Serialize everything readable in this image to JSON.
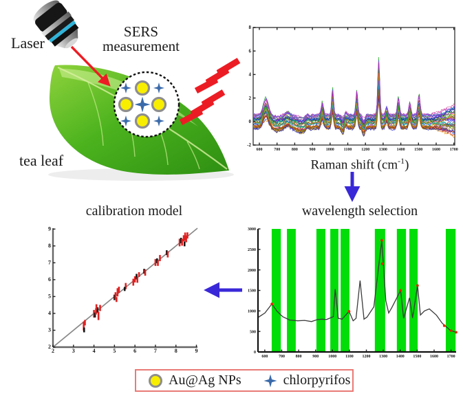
{
  "figure": {
    "kind": "SERS measurement workflow schematic",
    "labels": {
      "laser": "Laser",
      "sers_line1": "SERS",
      "sers_line2": "measurement",
      "tea_leaf": "tea leaf",
      "raman_xlabel_main": "Raman shift (cm",
      "raman_xlabel_sup": "-1",
      "raman_xlabel_end": ")"
    },
    "colors": {
      "arrow_red": "#ec1c24",
      "arrow_blue": "#3928d8",
      "plus_blue": "#3a6aaa",
      "np_yellow": "#f8ee00",
      "np_ring": "#8e8e8e",
      "leaf_green_dark": "#2e8f12",
      "leaf_green_light": "#9ade4a",
      "selection_green": "#00dd08",
      "legend_border": "#e97a76"
    },
    "icons": [
      "laser-objective-icon",
      "tea-leaf-icon",
      "sample-droplet-circle-icon",
      "au-ag-np-icon",
      "chlorpyrifos-plus-icon",
      "lightning-bolt-icon",
      "red-arrow-icon",
      "blue-down-arrow-icon",
      "blue-left-arrow-icon"
    ]
  },
  "legend": {
    "items": [
      {
        "icon": "au-ag-np-icon",
        "label": "Au@Ag NPs"
      },
      {
        "icon": "chlorpyrifos-plus-icon",
        "label": "chlorpyrifos"
      }
    ]
  },
  "chart_data": [
    {
      "id": "raman",
      "type": "line",
      "title": "",
      "xlabel": "Raman shift (cm⁻¹)",
      "ylabel": "",
      "xlim": [
        565,
        1705
      ],
      "ylim": [
        -2,
        8
      ],
      "x_ticks": [
        600,
        700,
        800,
        900,
        1000,
        1100,
        1200,
        1300,
        1400,
        1500,
        1600,
        1700
      ],
      "y_ticks": [
        -2,
        0,
        2,
        4,
        6,
        8
      ],
      "grid": false,
      "legend_position": "none",
      "n_series": 38,
      "series_colors": [
        "#2222cc",
        "#cc2222",
        "#22aa22",
        "#00b8b8",
        "#bb22bb",
        "#ee8800",
        "#5555ee",
        "#886600",
        "#009977",
        "#cc5599",
        "#7a7a00",
        "#3300aa",
        "#e03030",
        "#3060e0",
        "#30b030"
      ],
      "peaks": [
        {
          "x": 637,
          "h": 1.5,
          "w": 22
        },
        {
          "x": 760,
          "h": 0.35,
          "w": 16
        },
        {
          "x": 870,
          "h": 0.3,
          "w": 12
        },
        {
          "x": 956,
          "h": 1.15,
          "w": 10
        },
        {
          "x": 1014,
          "h": 2.3,
          "w": 8
        },
        {
          "x": 1085,
          "h": 0.6,
          "w": 10
        },
        {
          "x": 1151,
          "h": 2.2,
          "w": 8
        },
        {
          "x": 1275,
          "h": 4.9,
          "w": 8
        },
        {
          "x": 1320,
          "h": 0.8,
          "w": 9
        },
        {
          "x": 1386,
          "h": 1.6,
          "w": 9
        },
        {
          "x": 1451,
          "h": 1.2,
          "w": 9
        },
        {
          "x": 1503,
          "h": 1.9,
          "w": 9
        },
        {
          "x": 700,
          "h": -0.3,
          "w": 30
        },
        {
          "x": 840,
          "h": -0.45,
          "w": 40
        },
        {
          "x": 1075,
          "h": -0.65,
          "w": 13
        },
        {
          "x": 1190,
          "h": -0.75,
          "w": 10
        }
      ],
      "tail_start": 1560,
      "noise": 0.12
    },
    {
      "id": "wavelength",
      "type": "line-with-selection-bands",
      "title": "wavelength selection",
      "xlim": [
        560,
        1730
      ],
      "ylim": [
        0,
        3000
      ],
      "x_ticks": [
        600,
        700,
        800,
        900,
        1000,
        1100,
        1200,
        1300,
        1400,
        1500,
        1600,
        1700
      ],
      "y_ticks": [
        0,
        500,
        1000,
        1500,
        2000,
        2500,
        3000
      ],
      "grid": false,
      "band_color": "#00dd08",
      "line_color": "#3a3a3a",
      "highlight_color": "#e02800",
      "selected_bands": [
        [
          641,
          695
        ],
        [
          731,
          783
        ],
        [
          905,
          958
        ],
        [
          987,
          1035
        ],
        [
          1048,
          1100
        ],
        [
          1250,
          1311
        ],
        [
          1380,
          1434
        ],
        [
          1454,
          1503
        ],
        [
          1669,
          1727
        ]
      ],
      "spectrum": [
        [
          560,
          840
        ],
        [
          601,
          950
        ],
        [
          642,
          1170
        ],
        [
          671,
          1000
        ],
        [
          706,
          860
        ],
        [
          747,
          780
        ],
        [
          794,
          760
        ],
        [
          835,
          770
        ],
        [
          876,
          740
        ],
        [
          911,
          790
        ],
        [
          940,
          800
        ],
        [
          964,
          790
        ],
        [
          987,
          830
        ],
        [
          1005,
          860
        ],
        [
          1016,
          1530
        ],
        [
          1034,
          820
        ],
        [
          1057,
          800
        ],
        [
          1098,
          990
        ],
        [
          1122,
          760
        ],
        [
          1139,
          820
        ],
        [
          1163,
          1740
        ],
        [
          1186,
          800
        ],
        [
          1204,
          850
        ],
        [
          1244,
          1100
        ],
        [
          1291,
          2720
        ],
        [
          1315,
          1250
        ],
        [
          1332,
          950
        ],
        [
          1350,
          1080
        ],
        [
          1402,
          1500
        ],
        [
          1420,
          820
        ],
        [
          1455,
          1320
        ],
        [
          1473,
          830
        ],
        [
          1502,
          1620
        ],
        [
          1519,
          900
        ],
        [
          1543,
          1000
        ],
        [
          1572,
          1050
        ],
        [
          1613,
          900
        ],
        [
          1648,
          700
        ],
        [
          1695,
          530
        ],
        [
          1730,
          480
        ]
      ],
      "highlight_points": [
        [
          642,
          1170
        ],
        [
          1098,
          990
        ],
        [
          1291,
          2720
        ],
        [
          1294,
          2150
        ],
        [
          1402,
          1500
        ],
        [
          1502,
          1620
        ],
        [
          1660,
          640
        ],
        [
          1700,
          520
        ],
        [
          1730,
          480
        ]
      ]
    },
    {
      "id": "calibration",
      "type": "scatter",
      "title": "calibration model",
      "xlim": [
        2,
        9.05
      ],
      "ylim": [
        2,
        9.05
      ],
      "x_ticks": [
        2,
        3,
        4,
        5,
        6,
        7,
        8,
        9
      ],
      "y_ticks": [
        2,
        3,
        4,
        5,
        6,
        7,
        8,
        9
      ],
      "grid": false,
      "identity_line": [
        [
          2,
          2
        ],
        [
          9.05,
          9.05
        ]
      ],
      "marker_colors": {
        "r": "#e02020",
        "k": "#151515"
      },
      "points": [
        [
          3.5,
          3.25,
          "r",
          13
        ],
        [
          3.52,
          3.02,
          "k",
          7
        ],
        [
          3.56,
          3.45,
          "r",
          8
        ],
        [
          4.0,
          3.98,
          "r",
          11
        ],
        [
          4.05,
          3.9,
          "k",
          7
        ],
        [
          4.1,
          4.12,
          "r",
          9
        ],
        [
          4.18,
          4.2,
          "k",
          8
        ],
        [
          4.22,
          3.85,
          "r",
          12
        ],
        [
          4.3,
          4.32,
          "r",
          9
        ],
        [
          4.12,
          4.4,
          "r",
          7
        ],
        [
          5.0,
          4.95,
          "k",
          8
        ],
        [
          5.05,
          5.05,
          "r",
          10
        ],
        [
          5.15,
          5.25,
          "r",
          12
        ],
        [
          5.22,
          5.4,
          "r",
          9
        ],
        [
          5.1,
          4.82,
          "r",
          7
        ],
        [
          5.55,
          5.62,
          "r",
          9
        ],
        [
          5.5,
          5.45,
          "k",
          6
        ],
        [
          5.92,
          5.85,
          "r",
          10
        ],
        [
          6.0,
          6.02,
          "r",
          9
        ],
        [
          6.08,
          6.18,
          "k",
          8
        ],
        [
          6.12,
          5.98,
          "r",
          8
        ],
        [
          6.2,
          6.3,
          "r",
          7
        ],
        [
          6.45,
          6.5,
          "k",
          7
        ],
        [
          6.5,
          6.42,
          "r",
          9
        ],
        [
          7.0,
          7.02,
          "r",
          10
        ],
        [
          7.08,
          7.12,
          "k",
          7
        ],
        [
          7.12,
          6.98,
          "r",
          8
        ],
        [
          7.22,
          7.28,
          "r",
          9
        ],
        [
          7.55,
          7.6,
          "k",
          7
        ],
        [
          7.6,
          7.5,
          "r",
          9
        ],
        [
          8.18,
          8.2,
          "r",
          11
        ],
        [
          8.25,
          8.32,
          "k",
          8
        ],
        [
          8.3,
          8.22,
          "r",
          10
        ],
        [
          8.38,
          8.45,
          "r",
          9
        ],
        [
          8.42,
          8.12,
          "k",
          7
        ],
        [
          8.5,
          8.42,
          "r",
          10
        ],
        [
          8.56,
          8.62,
          "r",
          9
        ],
        [
          8.45,
          8.55,
          "r",
          12
        ]
      ]
    }
  ]
}
